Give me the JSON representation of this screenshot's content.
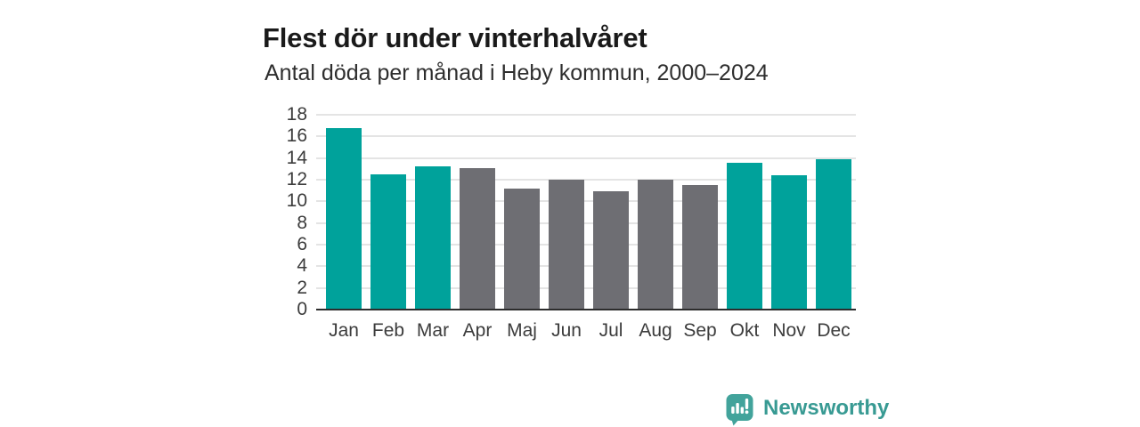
{
  "header": {
    "title": "Flest dör under vinterhalvåret",
    "subtitle": "Antal döda per månad i Heby kommun, 2000–2024"
  },
  "chart_data": {
    "type": "bar",
    "title": "Flest dör under vinterhalvåret",
    "subtitle": "Antal döda per månad i Heby kommun, 2000–2024",
    "categories": [
      "Jan",
      "Feb",
      "Mar",
      "Apr",
      "Maj",
      "Jun",
      "Jul",
      "Aug",
      "Sep",
      "Okt",
      "Nov",
      "Dec"
    ],
    "values": [
      16.8,
      12.5,
      13.2,
      13.1,
      11.2,
      12.0,
      10.9,
      12.0,
      11.5,
      13.6,
      12.4,
      13.9
    ],
    "point_colors": [
      "#00a29b",
      "#00a29b",
      "#00a29b",
      "#6e6e73",
      "#6e6e73",
      "#6e6e73",
      "#6e6e73",
      "#6e6e73",
      "#6e6e73",
      "#00a29b",
      "#00a29b",
      "#00a29b"
    ],
    "winter_color": "#00a29b",
    "summer_color": "#6e6e73",
    "xlabel": "",
    "ylabel": "",
    "ylim": [
      0,
      18
    ],
    "yticks": [
      0,
      2,
      4,
      6,
      8,
      10,
      12,
      14,
      16,
      18
    ],
    "grid": true,
    "gridline_color": "#e4e4e4",
    "axis_color": "#2d2d2d",
    "legend": "none"
  },
  "footer": {
    "brand": "Newsworthy",
    "logo_icon": "bar-chart-speech-bubble-icon",
    "brand_color": "#389a93",
    "logo_fill": "#42a39b"
  }
}
